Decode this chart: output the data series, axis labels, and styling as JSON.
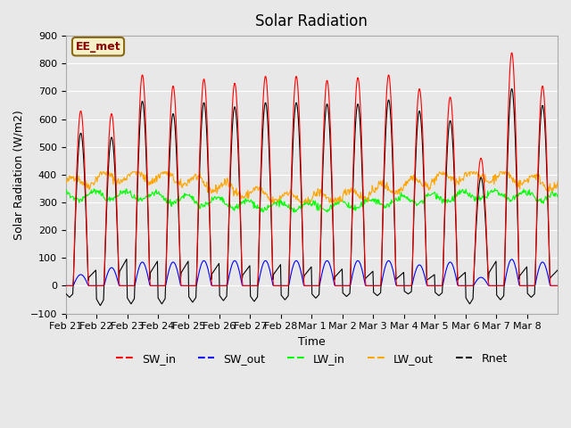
{
  "title": "Solar Radiation",
  "xlabel": "Time",
  "ylabel": "Solar Radiation (W/m2)",
  "ylim": [
    -100,
    900
  ],
  "yticks": [
    -100,
    0,
    100,
    200,
    300,
    400,
    500,
    600,
    700,
    800,
    900
  ],
  "annotation_text": "EE_met",
  "annotation_box_facecolor": "#f5f0c8",
  "annotation_box_edgecolor": "#8b6914",
  "bg_color": "#e8e8e8",
  "plot_bg_color": "#e8e8e8",
  "grid_color": "white",
  "line_colors": {
    "SW_in": "#ff0000",
    "SW_out": "#0000ff",
    "LW_in": "#00ff00",
    "LW_out": "#ffa500",
    "Rnet": "#000000"
  },
  "legend_labels": [
    "SW_in",
    "SW_out",
    "LW_in",
    "LW_out",
    "Rnet"
  ],
  "n_days": 16,
  "xtick_labels": [
    "Feb 21",
    "Feb 22",
    "Feb 23",
    "Feb 24",
    "Feb 25",
    "Feb 26",
    "Feb 27",
    "Feb 28",
    "Mar 1",
    "Mar 2",
    "Mar 3",
    "Mar 4",
    "Mar 5",
    "Mar 6",
    "Mar 7",
    "Mar 8"
  ],
  "sw_in_peaks": [
    630,
    620,
    760,
    720,
    745,
    730,
    755,
    755,
    740,
    750,
    760,
    710,
    680,
    460,
    840,
    720
  ],
  "sw_out_peaks": [
    40,
    65,
    85,
    85,
    90,
    90,
    90,
    90,
    90,
    90,
    90,
    75,
    85,
    30,
    95,
    85
  ],
  "rnet_peaks_day": [
    550,
    535,
    665,
    620,
    660,
    645,
    660,
    660,
    655,
    655,
    670,
    630,
    595,
    390,
    710,
    650
  ],
  "rnet_troughs": [
    -70,
    -120,
    -110,
    -110,
    -100,
    -90,
    -95,
    -85,
    -75,
    -65,
    -60,
    -50,
    -60,
    -110,
    -85,
    -70
  ],
  "lw_out_base": 355,
  "lw_in_base": 305
}
